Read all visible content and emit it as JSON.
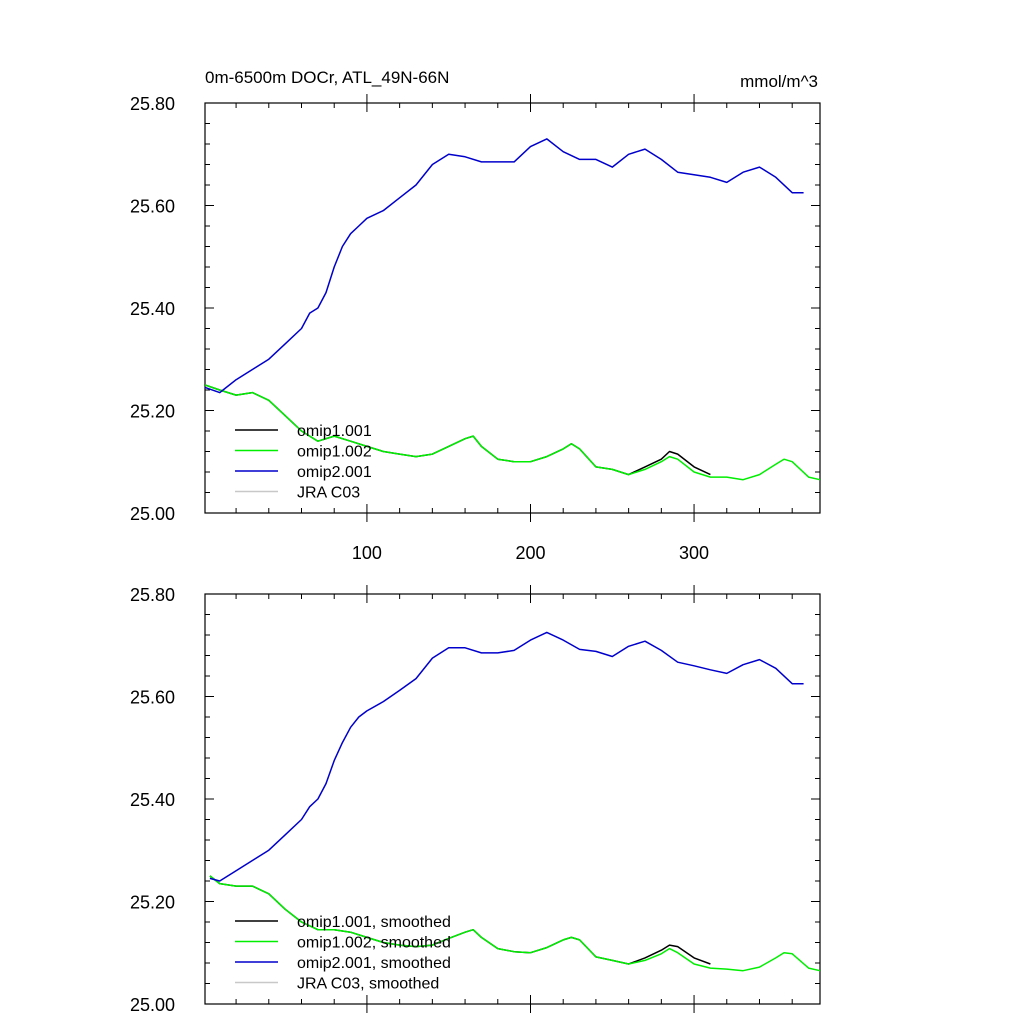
{
  "chart_data": [
    {
      "type": "line",
      "title": "0m-6500m DOCr, ATL_49N-66N",
      "units": "mmol/m^3",
      "xlim": [
        1,
        377
      ],
      "ylim": [
        25.0,
        25.8
      ],
      "x_ticks": [
        100,
        200,
        300
      ],
      "x_tick_labels": [
        "100",
        "200",
        "300"
      ],
      "y_ticks": [
        25.0,
        25.2,
        25.4,
        25.6,
        25.8
      ],
      "y_tick_labels": [
        "25.00",
        "25.20",
        "25.40",
        "25.60",
        "25.80"
      ],
      "legend_position": "bottom-left",
      "series": [
        {
          "name": "omip1.001",
          "color": "#000000",
          "x": [
            1,
            10,
            20,
            30,
            40,
            50,
            60,
            70,
            80,
            90,
            100,
            110,
            120,
            130,
            140,
            150,
            160,
            165,
            170,
            180,
            190,
            200,
            210,
            220,
            225,
            230,
            240,
            250,
            260,
            270,
            280,
            285,
            290,
            300,
            310
          ],
          "y": [
            25.25,
            25.24,
            25.23,
            25.235,
            25.22,
            25.19,
            25.16,
            25.14,
            25.15,
            25.14,
            25.13,
            25.12,
            25.115,
            25.11,
            25.115,
            25.13,
            25.145,
            25.15,
            25.13,
            25.105,
            25.1,
            25.1,
            25.11,
            25.125,
            25.135,
            25.125,
            25.09,
            25.085,
            25.075,
            25.09,
            25.105,
            25.12,
            25.115,
            25.09,
            25.075
          ]
        },
        {
          "name": "omip1.002",
          "color": "#00ee00",
          "x": [
            1,
            10,
            20,
            30,
            40,
            50,
            60,
            70,
            80,
            90,
            100,
            110,
            120,
            130,
            140,
            150,
            160,
            165,
            170,
            180,
            190,
            200,
            210,
            220,
            225,
            230,
            240,
            250,
            260,
            270,
            280,
            285,
            290,
            300,
            310,
            320,
            330,
            340,
            350,
            355,
            360,
            370,
            377
          ],
          "y": [
            25.25,
            25.24,
            25.23,
            25.235,
            25.22,
            25.19,
            25.16,
            25.14,
            25.15,
            25.14,
            25.13,
            25.12,
            25.115,
            25.11,
            25.115,
            25.13,
            25.145,
            25.15,
            25.13,
            25.105,
            25.1,
            25.1,
            25.11,
            25.125,
            25.135,
            25.125,
            25.09,
            25.085,
            25.075,
            25.085,
            25.1,
            25.11,
            25.105,
            25.08,
            25.07,
            25.07,
            25.065,
            25.075,
            25.095,
            25.105,
            25.1,
            25.07,
            25.065
          ]
        },
        {
          "name": "omip2.001",
          "color": "#0000cc",
          "x": [
            1,
            10,
            20,
            30,
            40,
            50,
            60,
            65,
            70,
            75,
            80,
            85,
            90,
            95,
            100,
            110,
            120,
            130,
            140,
            150,
            160,
            170,
            180,
            190,
            200,
            210,
            220,
            230,
            240,
            250,
            260,
            270,
            280,
            290,
            300,
            310,
            320,
            330,
            340,
            350,
            360,
            367
          ],
          "y": [
            25.245,
            25.235,
            25.26,
            25.28,
            25.3,
            25.33,
            25.36,
            25.39,
            25.4,
            25.43,
            25.48,
            25.52,
            25.545,
            25.56,
            25.575,
            25.59,
            25.615,
            25.64,
            25.68,
            25.7,
            25.695,
            25.685,
            25.685,
            25.685,
            25.715,
            25.73,
            25.705,
            25.69,
            25.69,
            25.675,
            25.7,
            25.71,
            25.69,
            25.665,
            25.66,
            25.655,
            25.645,
            25.665,
            25.675,
            25.655,
            25.625,
            25.625
          ]
        },
        {
          "name": "JRA C03",
          "color": "#c8c8c8",
          "x": [],
          "y": []
        }
      ]
    },
    {
      "type": "line",
      "xlim": [
        1,
        377
      ],
      "ylim": [
        25.0,
        25.8
      ],
      "x_ticks": [
        100,
        200,
        300
      ],
      "x_tick_labels": [],
      "y_ticks": [
        25.0,
        25.2,
        25.4,
        25.6,
        25.8
      ],
      "y_tick_labels": [
        "25.00",
        "25.20",
        "25.40",
        "25.60",
        "25.80"
      ],
      "legend_position": "bottom-left",
      "series": [
        {
          "name": "omip1.001, smoothed",
          "color": "#000000",
          "x": [
            4,
            10,
            20,
            30,
            40,
            50,
            60,
            70,
            80,
            90,
            100,
            110,
            120,
            130,
            140,
            150,
            160,
            165,
            170,
            180,
            190,
            200,
            210,
            220,
            225,
            230,
            240,
            250,
            260,
            270,
            280,
            285,
            290,
            300,
            310
          ],
          "y": [
            25.25,
            25.235,
            25.23,
            25.23,
            25.215,
            25.185,
            25.16,
            25.145,
            25.145,
            25.14,
            25.13,
            25.12,
            25.115,
            25.112,
            25.115,
            25.128,
            25.14,
            25.145,
            25.13,
            25.108,
            25.102,
            25.1,
            25.11,
            25.125,
            25.13,
            25.125,
            25.092,
            25.085,
            25.078,
            25.09,
            25.105,
            25.115,
            25.112,
            25.09,
            25.078
          ]
        },
        {
          "name": "omip1.002, smoothed",
          "color": "#00ee00",
          "x": [
            4,
            10,
            20,
            30,
            40,
            50,
            60,
            70,
            80,
            90,
            100,
            110,
            120,
            130,
            140,
            150,
            160,
            165,
            170,
            180,
            190,
            200,
            210,
            220,
            225,
            230,
            240,
            250,
            260,
            270,
            280,
            285,
            290,
            300,
            310,
            320,
            330,
            340,
            350,
            355,
            360,
            370,
            377
          ],
          "y": [
            25.25,
            25.235,
            25.23,
            25.23,
            25.215,
            25.185,
            25.16,
            25.145,
            25.145,
            25.14,
            25.13,
            25.12,
            25.115,
            25.112,
            25.115,
            25.128,
            25.14,
            25.145,
            25.13,
            25.108,
            25.102,
            25.1,
            25.11,
            25.125,
            25.13,
            25.125,
            25.092,
            25.085,
            25.078,
            25.085,
            25.098,
            25.108,
            25.1,
            25.078,
            25.07,
            25.068,
            25.065,
            25.072,
            25.09,
            25.1,
            25.098,
            25.07,
            25.065
          ]
        },
        {
          "name": "omip2.001, smoothed",
          "color": "#0000cc",
          "x": [
            4,
            10,
            20,
            30,
            40,
            50,
            60,
            65,
            70,
            75,
            80,
            85,
            90,
            95,
            100,
            110,
            120,
            130,
            140,
            150,
            160,
            170,
            180,
            190,
            200,
            210,
            220,
            230,
            240,
            250,
            260,
            270,
            280,
            290,
            300,
            310,
            320,
            330,
            340,
            350,
            360,
            367
          ],
          "y": [
            25.245,
            25.24,
            25.26,
            25.28,
            25.3,
            25.33,
            25.36,
            25.385,
            25.4,
            25.43,
            25.475,
            25.51,
            25.54,
            25.56,
            25.572,
            25.59,
            25.612,
            25.635,
            25.675,
            25.695,
            25.695,
            25.685,
            25.685,
            25.69,
            25.71,
            25.725,
            25.71,
            25.692,
            25.688,
            25.678,
            25.698,
            25.708,
            25.69,
            25.667,
            25.66,
            25.652,
            25.645,
            25.662,
            25.672,
            25.655,
            25.625,
            25.625
          ]
        },
        {
          "name": "JRA C03, smoothed",
          "color": "#c8c8c8",
          "x": [],
          "y": []
        }
      ]
    }
  ]
}
